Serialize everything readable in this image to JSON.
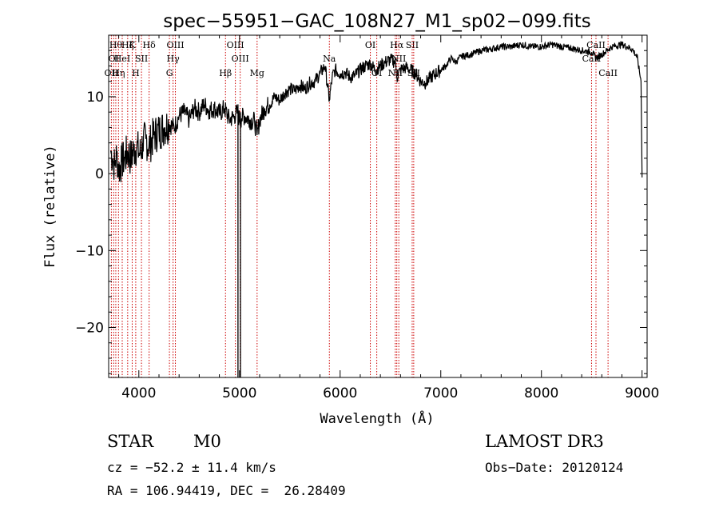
{
  "chart_data": {
    "type": "line",
    "title": "spec−55951−GAC_108N27_M1_sp02−099.fits",
    "xlabel": "Wavelength (Å)",
    "ylabel": "Flux (relative)",
    "xlim": [
      3700,
      9050
    ],
    "ylim": [
      -26.5,
      18
    ],
    "x_ticks": [
      4000,
      5000,
      6000,
      7000,
      8000,
      9000
    ],
    "x_tick_labels": [
      "4000",
      "5000",
      "6000",
      "7000",
      "8000",
      "9000"
    ],
    "y_ticks": [
      10,
      0,
      -10,
      -20
    ],
    "y_tick_labels": [
      "10",
      "0",
      "−10",
      "−20"
    ],
    "series": [
      {
        "name": "flux",
        "x": [
          3720,
          3740,
          3760,
          3780,
          3800,
          3830,
          3860,
          3890,
          3920,
          3950,
          3980,
          4010,
          4040,
          4070,
          4100,
          4150,
          4200,
          4250,
          4300,
          4350,
          4400,
          4450,
          4500,
          4550,
          4600,
          4650,
          4700,
          4750,
          4800,
          4850,
          4900,
          4950,
          4980,
          5000,
          5020,
          5050,
          5100,
          5150,
          5175,
          5200,
          5250,
          5300,
          5350,
          5400,
          5450,
          5500,
          5550,
          5600,
          5650,
          5700,
          5750,
          5800,
          5850,
          5893,
          5920,
          5950,
          6000,
          6050,
          6100,
          6150,
          6200,
          6250,
          6300,
          6350,
          6400,
          6450,
          6500,
          6550,
          6563,
          6600,
          6650,
          6700,
          6750,
          6800,
          6850,
          6900,
          6950,
          7000,
          7050,
          7100,
          7150,
          7200,
          7300,
          7400,
          7500,
          7600,
          7700,
          7800,
          7900,
          8000,
          8100,
          8200,
          8300,
          8400,
          8500,
          8542,
          8600,
          8700,
          8800,
          8850,
          8900,
          8950,
          8990,
          9000
        ],
        "values": [
          3.0,
          2.0,
          1.0,
          2.5,
          0.5,
          1.5,
          2.0,
          2.8,
          2.0,
          3.0,
          3.5,
          2.5,
          4.0,
          4.5,
          3.5,
          5.0,
          5.5,
          6.0,
          6.5,
          6.0,
          7.5,
          8.0,
          7.0,
          8.5,
          8.0,
          9.0,
          8.2,
          8.5,
          7.8,
          8.5,
          7.0,
          7.5,
          8.0,
          7.0,
          7.2,
          7.5,
          7.0,
          6.8,
          5.0,
          7.0,
          8.5,
          9.0,
          10.0,
          9.5,
          10.5,
          11.0,
          10.8,
          11.5,
          11.0,
          11.8,
          12.0,
          13.0,
          14.0,
          9.5,
          12.5,
          13.5,
          13.0,
          13.2,
          12.5,
          12.8,
          13.5,
          14.0,
          14.3,
          13.5,
          14.0,
          14.5,
          14.8,
          14.5,
          12.5,
          13.5,
          13.8,
          13.5,
          13.0,
          12.0,
          11.8,
          12.5,
          13.0,
          13.5,
          14.0,
          15.0,
          14.5,
          15.2,
          15.5,
          16.0,
          16.2,
          16.5,
          16.5,
          16.8,
          16.5,
          16.5,
          16.8,
          16.5,
          16.3,
          16.0,
          15.8,
          15.0,
          15.5,
          16.5,
          16.8,
          16.5,
          16.2,
          15.2,
          12.0,
          -0.5
        ]
      }
    ],
    "spikes": [
      {
        "x": 4985,
        "y_min": -26.5,
        "y_max": 9.0
      },
      {
        "x": 5010,
        "y_min": -26.5,
        "y_max": 8.0
      }
    ],
    "line_markers": [
      {
        "x": 3727,
        "labels": [
          {
            "text": "OII",
            "row": 3
          }
        ]
      },
      {
        "x": 3750,
        "labels": [
          {
            "text": "OI",
            "row": 2
          }
        ]
      },
      {
        "x": 3771,
        "labels": [
          {
            "text": "Hθ",
            "row": 1
          }
        ]
      },
      {
        "x": 3798,
        "labels": [
          {
            "text": "Hη",
            "row": 3
          }
        ]
      },
      {
        "x": 3835,
        "labels": [
          {
            "text": "HeI",
            "row": 2
          }
        ]
      },
      {
        "x": 3889,
        "labels": [
          {
            "text": "Hζ",
            "row": 1
          }
        ]
      },
      {
        "x": 3934,
        "labels": [
          {
            "text": "K",
            "row": 1
          }
        ]
      },
      {
        "x": 3969,
        "labels": [
          {
            "text": "H",
            "row": 3
          }
        ]
      },
      {
        "x": 4026,
        "labels": [
          {
            "text": "SII",
            "row": 2
          }
        ]
      },
      {
        "x": 4102,
        "labels": [
          {
            "text": "Hδ",
            "row": 1
          }
        ]
      },
      {
        "x": 4304,
        "labels": [
          {
            "text": "G",
            "row": 3
          }
        ]
      },
      {
        "x": 4340,
        "labels": [
          {
            "text": "Hγ",
            "row": 2
          }
        ]
      },
      {
        "x": 4363,
        "labels": [
          {
            "text": "OIII",
            "row": 1
          }
        ]
      },
      {
        "x": 4861,
        "labels": [
          {
            "text": "Hβ",
            "row": 3
          }
        ]
      },
      {
        "x": 4959,
        "labels": [
          {
            "text": "OIII",
            "row": 1
          }
        ]
      },
      {
        "x": 5007,
        "labels": [
          {
            "text": "OIII",
            "row": 2
          }
        ]
      },
      {
        "x": 5175,
        "labels": [
          {
            "text": "Mg",
            "row": 3
          }
        ]
      },
      {
        "x": 5893,
        "labels": [
          {
            "text": "Na",
            "row": 2
          }
        ]
      },
      {
        "x": 6300,
        "labels": [
          {
            "text": "OI",
            "row": 1
          }
        ]
      },
      {
        "x": 6364,
        "labels": [
          {
            "text": "OI",
            "row": 3
          }
        ]
      },
      {
        "x": 6548,
        "labels": [
          {
            "text": "NII",
            "row": 3
          }
        ]
      },
      {
        "x": 6563,
        "labels": [
          {
            "text": "Hα",
            "row": 1
          }
        ]
      },
      {
        "x": 6583,
        "labels": [
          {
            "text": "NII",
            "row": 2
          }
        ]
      },
      {
        "x": 6716,
        "labels": [
          {
            "text": "SII",
            "row": 1
          }
        ]
      },
      {
        "x": 6731,
        "labels": [
          {
            "text": "SII",
            "row": 3
          }
        ]
      },
      {
        "x": 8498,
        "labels": [
          {
            "text": "CaII",
            "row": 2
          }
        ]
      },
      {
        "x": 8542,
        "labels": [
          {
            "text": "CaII",
            "row": 1
          }
        ]
      },
      {
        "x": 8662,
        "labels": [
          {
            "text": "CaII",
            "row": 3
          }
        ]
      }
    ],
    "colors": {
      "spectrum": "#000000",
      "marker": "#cc0000",
      "axes": "#000000"
    }
  },
  "info": {
    "class": "STAR",
    "subclass": "M0",
    "survey": "LAMOST DR3",
    "cz": "cz = −52.2 ± 11.4 km/s",
    "obs_date": "Obs−Date: 20120124",
    "coords": "RA = 106.94419, DEC =  26.28409"
  }
}
